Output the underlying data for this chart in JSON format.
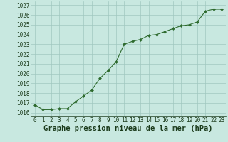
{
  "x": [
    0,
    1,
    2,
    3,
    4,
    5,
    6,
    7,
    8,
    9,
    10,
    11,
    12,
    13,
    14,
    15,
    16,
    17,
    18,
    19,
    20,
    21,
    22,
    23
  ],
  "y": [
    1016.8,
    1016.3,
    1016.3,
    1016.4,
    1016.4,
    1017.1,
    1017.7,
    1018.3,
    1019.5,
    1020.3,
    1021.2,
    1023.0,
    1023.3,
    1023.5,
    1023.9,
    1024.0,
    1024.3,
    1024.6,
    1024.9,
    1025.0,
    1025.3,
    1026.4,
    1026.6,
    1026.6
  ],
  "line_color": "#2d6a2d",
  "marker_color": "#2d6a2d",
  "bg_color": "#c8e8e0",
  "grid_color": "#a0c8c0",
  "xlabel": "Graphe pression niveau de la mer (hPa)",
  "xlabel_color": "#1a3a1a",
  "ylabel_ticks": [
    1016,
    1017,
    1018,
    1019,
    1020,
    1021,
    1022,
    1023,
    1024,
    1025,
    1026,
    1027
  ],
  "ylim": [
    1015.6,
    1027.4
  ],
  "xlim": [
    -0.5,
    23.5
  ],
  "xtick_labels": [
    "0",
    "1",
    "2",
    "3",
    "4",
    "5",
    "6",
    "7",
    "8",
    "9",
    "10",
    "11",
    "12",
    "13",
    "14",
    "15",
    "16",
    "17",
    "18",
    "19",
    "20",
    "21",
    "22",
    "23"
  ],
  "tick_fontsize": 5.5,
  "xlabel_fontsize": 7.5
}
